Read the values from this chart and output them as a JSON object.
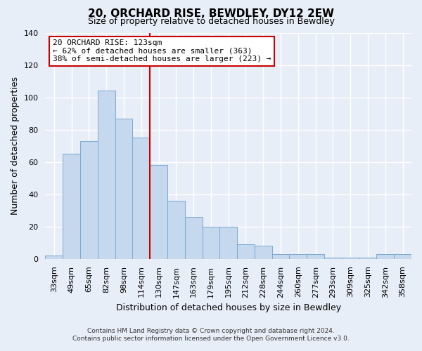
{
  "title": "20, ORCHARD RISE, BEWDLEY, DY12 2EW",
  "subtitle": "Size of property relative to detached houses in Bewdley",
  "xlabel": "Distribution of detached houses by size in Bewdley",
  "ylabel": "Number of detached properties",
  "bar_labels": [
    "33sqm",
    "49sqm",
    "65sqm",
    "82sqm",
    "98sqm",
    "114sqm",
    "130sqm",
    "147sqm",
    "163sqm",
    "179sqm",
    "195sqm",
    "212sqm",
    "228sqm",
    "244sqm",
    "260sqm",
    "277sqm",
    "293sqm",
    "309sqm",
    "325sqm",
    "342sqm",
    "358sqm"
  ],
  "bar_values": [
    2,
    65,
    73,
    104,
    87,
    75,
    58,
    36,
    26,
    20,
    20,
    9,
    8,
    3,
    3,
    3,
    1,
    1,
    1,
    3,
    3
  ],
  "bar_color": "#c5d8ee",
  "bar_edge_color": "#7aaad0",
  "vline_color": "#cc0000",
  "vline_pos": 6.0,
  "annotation_text": "20 ORCHARD RISE: 123sqm\n← 62% of detached houses are smaller (363)\n38% of semi-detached houses are larger (223) →",
  "annotation_box_facecolor": "#ffffff",
  "annotation_box_edgecolor": "#cc0000",
  "ylim": [
    0,
    140
  ],
  "yticks": [
    0,
    20,
    40,
    60,
    80,
    100,
    120,
    140
  ],
  "footer_line1": "Contains HM Land Registry data © Crown copyright and database right 2024.",
  "footer_line2": "Contains public sector information licensed under the Open Government Licence v3.0.",
  "bg_color": "#e8eef8",
  "plot_bg_color": "#e8eef8",
  "title_fontsize": 11,
  "subtitle_fontsize": 9,
  "ylabel_fontsize": 9,
  "xlabel_fontsize": 9,
  "tick_fontsize": 8,
  "footer_fontsize": 6.5,
  "annotation_fontsize": 8
}
